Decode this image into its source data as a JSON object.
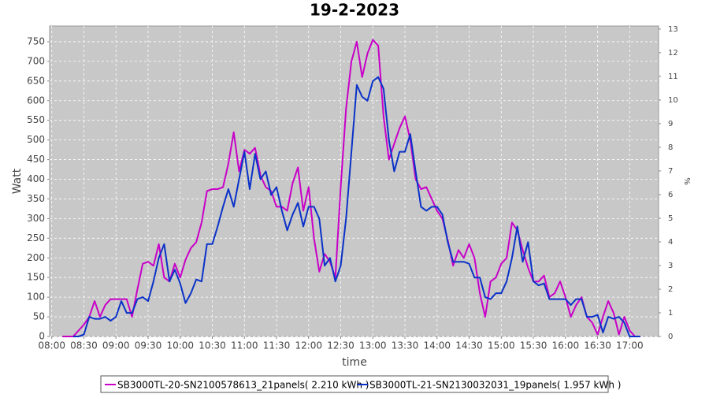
{
  "chart_data": {
    "type": "line",
    "title": "19-2-2023",
    "x_label": "time",
    "y_label": "Watt",
    "y2_label": "%",
    "x": [
      "08:10",
      "08:15",
      "08:20",
      "08:25",
      "08:30",
      "08:35",
      "08:40",
      "08:45",
      "08:50",
      "08:55",
      "09:00",
      "09:05",
      "09:10",
      "09:15",
      "09:20",
      "09:25",
      "09:30",
      "09:35",
      "09:40",
      "09:45",
      "09:50",
      "09:55",
      "10:00",
      "10:05",
      "10:10",
      "10:15",
      "10:20",
      "10:25",
      "10:30",
      "10:35",
      "10:40",
      "10:45",
      "10:50",
      "10:55",
      "11:00",
      "11:05",
      "11:10",
      "11:15",
      "11:20",
      "11:25",
      "11:30",
      "11:35",
      "11:40",
      "11:45",
      "11:50",
      "11:55",
      "12:00",
      "12:05",
      "12:10",
      "12:15",
      "12:20",
      "12:25",
      "12:30",
      "12:35",
      "12:40",
      "12:45",
      "12:50",
      "12:55",
      "13:00",
      "13:05",
      "13:10",
      "13:15",
      "13:20",
      "13:25",
      "13:30",
      "13:35",
      "13:40",
      "13:45",
      "13:50",
      "13:55",
      "14:00",
      "14:05",
      "14:10",
      "14:15",
      "14:20",
      "14:25",
      "14:30",
      "14:35",
      "14:40",
      "14:45",
      "14:50",
      "14:55",
      "15:00",
      "15:05",
      "15:10",
      "15:15",
      "15:20",
      "15:25",
      "15:30",
      "15:35",
      "15:40",
      "15:45",
      "15:50",
      "15:55",
      "16:00",
      "16:05",
      "16:10",
      "16:15",
      "16:20",
      "16:25",
      "16:30",
      "16:35",
      "16:40",
      "16:45",
      "16:50",
      "16:55",
      "17:00",
      "17:05",
      "17:10"
    ],
    "series": [
      {
        "name": "SB3000TL-20-SN2100578613_21panels( 2.210 kWh )",
        "color": "#c800c8",
        "values": [
          0,
          0,
          0,
          15,
          30,
          50,
          90,
          50,
          80,
          95,
          95,
          95,
          95,
          50,
          120,
          185,
          190,
          180,
          235,
          150,
          140,
          185,
          150,
          195,
          225,
          240,
          290,
          370,
          375,
          375,
          380,
          440,
          520,
          420,
          475,
          465,
          480,
          410,
          380,
          370,
          330,
          330,
          320,
          390,
          430,
          320,
          380,
          250,
          165,
          210,
          190,
          150,
          380,
          580,
          700,
          750,
          660,
          720,
          755,
          740,
          560,
          450,
          490,
          530,
          560,
          500,
          400,
          375,
          380,
          350,
          320,
          300,
          245,
          180,
          220,
          200,
          235,
          200,
          110,
          50,
          140,
          150,
          185,
          200,
          290,
          270,
          220,
          175,
          140,
          140,
          155,
          100,
          110,
          140,
          100,
          50,
          80,
          100,
          50,
          35,
          5,
          50,
          90,
          60,
          5,
          50,
          15,
          0,
          0
        ]
      },
      {
        "name": "SB3000TL-21-SN2130032031_19panels( 1.957 kWh )",
        "color": "#0a32c8",
        "values": [
          null,
          null,
          0,
          0,
          5,
          50,
          45,
          45,
          50,
          40,
          50,
          90,
          60,
          60,
          95,
          100,
          90,
          140,
          200,
          235,
          140,
          170,
          135,
          85,
          110,
          145,
          140,
          235,
          235,
          280,
          330,
          375,
          330,
          400,
          470,
          375,
          465,
          400,
          420,
          360,
          380,
          320,
          270,
          310,
          340,
          280,
          330,
          330,
          300,
          180,
          200,
          140,
          180,
          300,
          470,
          640,
          610,
          600,
          650,
          660,
          630,
          500,
          420,
          470,
          470,
          515,
          420,
          330,
          320,
          330,
          330,
          310,
          240,
          190,
          190,
          190,
          185,
          150,
          150,
          100,
          95,
          110,
          110,
          140,
          200,
          280,
          190,
          240,
          140,
          130,
          135,
          95,
          95,
          95,
          95,
          80,
          95,
          95,
          50,
          50,
          55,
          10,
          50,
          45,
          50,
          35,
          0,
          0,
          0
        ]
      }
    ],
    "xlim": [
      "07:58",
      "17:27"
    ],
    "xticks": [
      "08:00",
      "08:30",
      "09:00",
      "09:30",
      "10:00",
      "10:30",
      "11:00",
      "11:30",
      "12:00",
      "12:30",
      "13:00",
      "13:30",
      "14:00",
      "14:30",
      "15:00",
      "15:30",
      "16:00",
      "16:30",
      "17:00"
    ],
    "ylim": [
      0,
      790
    ],
    "yticks": [
      0,
      50,
      100,
      150,
      200,
      250,
      300,
      350,
      400,
      450,
      500,
      550,
      600,
      650,
      700,
      750
    ],
    "y2lim": [
      0,
      13.13
    ],
    "y2ticks": [
      0,
      1,
      2,
      3,
      4,
      5,
      6,
      7,
      8,
      9,
      10,
      11,
      12,
      13
    ],
    "grid": true
  }
}
